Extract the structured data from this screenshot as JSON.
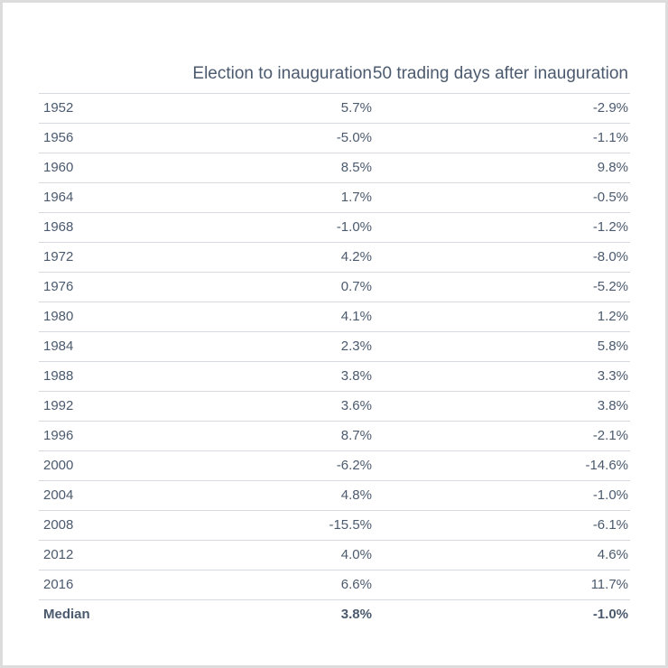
{
  "headers": [
    "",
    "Election to inauguration",
    "50 trading days after inauguration"
  ],
  "chart_data": {
    "type": "table",
    "columns": [
      "",
      "Election to inauguration",
      "50 trading days after inauguration"
    ],
    "rows": [
      [
        "1952",
        "5.7%",
        "-2.9%"
      ],
      [
        "1956",
        "-5.0%",
        "-1.1%"
      ],
      [
        "1960",
        "8.5%",
        "9.8%"
      ],
      [
        "1964",
        "1.7%",
        "-0.5%"
      ],
      [
        "1968",
        "-1.0%",
        "-1.2%"
      ],
      [
        "1972",
        "4.2%",
        "-8.0%"
      ],
      [
        "1976",
        "0.7%",
        "-5.2%"
      ],
      [
        "1980",
        "4.1%",
        "1.2%"
      ],
      [
        "1984",
        "2.3%",
        "5.8%"
      ],
      [
        "1988",
        "3.8%",
        "3.3%"
      ],
      [
        "1992",
        "3.6%",
        "3.8%"
      ],
      [
        "1996",
        "8.7%",
        "-2.1%"
      ],
      [
        "2000",
        "-6.2%",
        "-14.6%"
      ],
      [
        "2004",
        "4.8%",
        "-1.0%"
      ],
      [
        "2008",
        "-15.5%",
        "-6.1%"
      ],
      [
        "2012",
        "4.0%",
        "4.6%"
      ],
      [
        "2016",
        "6.6%",
        "11.7%"
      ]
    ],
    "summary_row": [
      "Median",
      "3.8%",
      "-1.0%"
    ]
  }
}
